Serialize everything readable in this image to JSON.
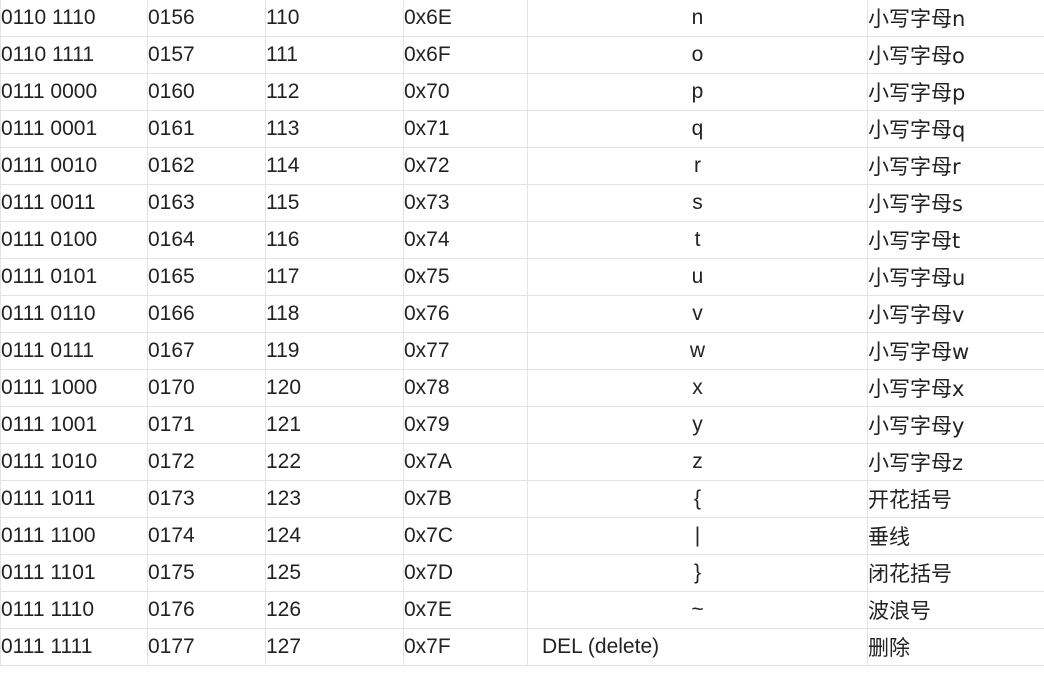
{
  "table": {
    "rows": [
      {
        "bin": "0110 1110",
        "oct": "0156",
        "dec": "110",
        "hex": "0x6E",
        "char": "n",
        "desc": "小写字母n"
      },
      {
        "bin": "0110 1111",
        "oct": "0157",
        "dec": "111",
        "hex": "0x6F",
        "char": "o",
        "desc": "小写字母o"
      },
      {
        "bin": "0111 0000",
        "oct": "0160",
        "dec": "112",
        "hex": "0x70",
        "char": "p",
        "desc": "小写字母p"
      },
      {
        "bin": "0111 0001",
        "oct": "0161",
        "dec": "113",
        "hex": "0x71",
        "char": "q",
        "desc": "小写字母q"
      },
      {
        "bin": "0111 0010",
        "oct": "0162",
        "dec": "114",
        "hex": "0x72",
        "char": "r",
        "desc": "小写字母r"
      },
      {
        "bin": "0111 0011",
        "oct": "0163",
        "dec": "115",
        "hex": "0x73",
        "char": "s",
        "desc": "小写字母s"
      },
      {
        "bin": "0111 0100",
        "oct": "0164",
        "dec": "116",
        "hex": "0x74",
        "char": "t",
        "desc": "小写字母t"
      },
      {
        "bin": "0111 0101",
        "oct": "0165",
        "dec": "117",
        "hex": "0x75",
        "char": "u",
        "desc": "小写字母u"
      },
      {
        "bin": "0111 0110",
        "oct": "0166",
        "dec": "118",
        "hex": "0x76",
        "char": "v",
        "desc": "小写字母v"
      },
      {
        "bin": "0111 0111",
        "oct": "0167",
        "dec": "119",
        "hex": "0x77",
        "char": "w",
        "desc": "小写字母w"
      },
      {
        "bin": "0111 1000",
        "oct": "0170",
        "dec": "120",
        "hex": "0x78",
        "char": "x",
        "desc": "小写字母x"
      },
      {
        "bin": "0111 1001",
        "oct": "0171",
        "dec": "121",
        "hex": "0x79",
        "char": "y",
        "desc": "小写字母y"
      },
      {
        "bin": "0111 1010",
        "oct": "0172",
        "dec": "122",
        "hex": "0x7A",
        "char": "z",
        "desc": "小写字母z"
      },
      {
        "bin": "0111 1011",
        "oct": "0173",
        "dec": "123",
        "hex": "0x7B",
        "char": "{",
        "desc": "开花括号"
      },
      {
        "bin": "0111 1100",
        "oct": "0174",
        "dec": "124",
        "hex": "0x7C",
        "char": "|",
        "desc": "垂线"
      },
      {
        "bin": "0111 1101",
        "oct": "0175",
        "dec": "125",
        "hex": "0x7D",
        "char": "}",
        "desc": "闭花括号"
      },
      {
        "bin": "0111 1110",
        "oct": "0176",
        "dec": "126",
        "hex": "0x7E",
        "char": "~",
        "desc": "波浪号"
      },
      {
        "bin": "0111 1111",
        "oct": "0177",
        "dec": "127",
        "hex": "0x7F",
        "char": "DEL (delete)",
        "desc": "删除",
        "char_align": "left"
      }
    ]
  }
}
